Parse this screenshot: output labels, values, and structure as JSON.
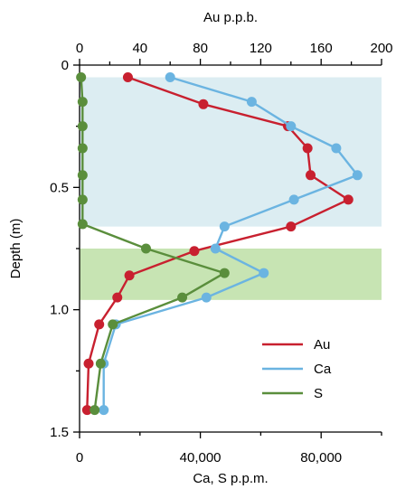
{
  "chart_data": {
    "type": "line",
    "orientation": "depth-profile",
    "top_axis": {
      "label": "Au p.p.b.",
      "range": [
        0,
        200
      ],
      "ticks": [
        0,
        40,
        80,
        120,
        160,
        200
      ]
    },
    "bottom_axis": {
      "label": "Ca, S p.p.m.",
      "range": [
        0,
        100000
      ],
      "ticks": [
        0,
        40000,
        80000
      ],
      "tick_labels": [
        "0",
        "40,000",
        "80,000"
      ]
    },
    "y_axis": {
      "label": "Depth (m)",
      "range": [
        0,
        1.5
      ],
      "inverted": true,
      "ticks": [
        0,
        0.5,
        1.0,
        1.5
      ],
      "tick_labels": [
        "0",
        "0.5",
        "1.0",
        "1.5"
      ]
    },
    "bands": [
      {
        "from": 0.05,
        "to": 0.66,
        "color": "#dcedf2"
      },
      {
        "from": 0.75,
        "to": 0.96,
        "color": "#c7e4b3"
      }
    ],
    "series": [
      {
        "name": "Au",
        "axis": "top",
        "color": "#c8202f",
        "points": [
          {
            "value": 32,
            "depth": 0.05
          },
          {
            "value": 82,
            "depth": 0.16
          },
          {
            "value": 138,
            "depth": 0.25
          },
          {
            "value": 151,
            "depth": 0.34
          },
          {
            "value": 153,
            "depth": 0.45
          },
          {
            "value": 178,
            "depth": 0.55
          },
          {
            "value": 140,
            "depth": 0.66
          },
          {
            "value": 76,
            "depth": 0.76
          },
          {
            "value": 33,
            "depth": 0.86
          },
          {
            "value": 25,
            "depth": 0.95
          },
          {
            "value": 13,
            "depth": 1.06
          },
          {
            "value": 6,
            "depth": 1.22
          },
          {
            "value": 5,
            "depth": 1.41
          }
        ]
      },
      {
        "name": "Ca",
        "axis": "bottom",
        "color": "#6bb4e1",
        "points": [
          {
            "value": 30000,
            "depth": 0.05
          },
          {
            "value": 57000,
            "depth": 0.15
          },
          {
            "value": 70000,
            "depth": 0.25
          },
          {
            "value": 85000,
            "depth": 0.34
          },
          {
            "value": 92000,
            "depth": 0.45
          },
          {
            "value": 71000,
            "depth": 0.55
          },
          {
            "value": 48000,
            "depth": 0.66
          },
          {
            "value": 45000,
            "depth": 0.75
          },
          {
            "value": 61000,
            "depth": 0.85
          },
          {
            "value": 42000,
            "depth": 0.95
          },
          {
            "value": 12000,
            "depth": 1.06
          },
          {
            "value": 8000,
            "depth": 1.22
          },
          {
            "value": 8000,
            "depth": 1.41
          }
        ]
      },
      {
        "name": "S",
        "axis": "bottom",
        "color": "#5a8e3c",
        "points": [
          {
            "value": 500,
            "depth": 0.05
          },
          {
            "value": 1000,
            "depth": 0.15
          },
          {
            "value": 1000,
            "depth": 0.25
          },
          {
            "value": 1000,
            "depth": 0.34
          },
          {
            "value": 1000,
            "depth": 0.45
          },
          {
            "value": 1000,
            "depth": 0.55
          },
          {
            "value": 1000,
            "depth": 0.65
          },
          {
            "value": 22000,
            "depth": 0.75
          },
          {
            "value": 48000,
            "depth": 0.85
          },
          {
            "value": 34000,
            "depth": 0.95
          },
          {
            "value": 11000,
            "depth": 1.06
          },
          {
            "value": 7000,
            "depth": 1.22
          },
          {
            "value": 5000,
            "depth": 1.41
          }
        ]
      }
    ],
    "legend": {
      "placement": "bottom-right",
      "entries": [
        "Au",
        "Ca",
        "S"
      ]
    },
    "grid": false
  }
}
